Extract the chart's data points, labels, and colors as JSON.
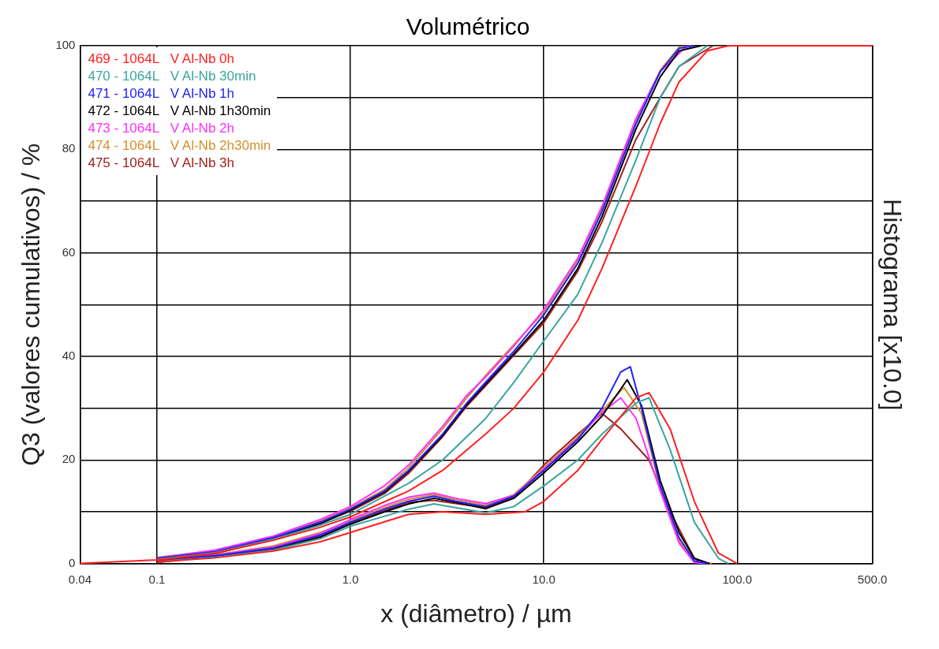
{
  "chart_data": {
    "type": "line",
    "title": "Volumétrico",
    "xlabel": "x (diâmetro) / µm",
    "ylabel": "Q3 (valores cumulativos) / %",
    "y2label": "Histograma [x10.0]",
    "log": "x",
    "grid": true,
    "legend": "top left",
    "xlim": [
      0.04,
      500
    ],
    "xticks": [
      {
        "value": 0.04,
        "label": "0.04"
      },
      {
        "value": 0.1,
        "label": "0.1"
      },
      {
        "value": 1,
        "label": "1.0"
      },
      {
        "value": 10,
        "label": "10.0"
      },
      {
        "value": 100,
        "label": "100.0"
      },
      {
        "value": 500,
        "label": "500.0"
      }
    ],
    "ylim": [
      0,
      100
    ],
    "yticks": [
      0,
      {
        "value": 10,
        "label": null
      },
      20,
      {
        "value": 30,
        "label": null
      },
      40,
      {
        "value": 50,
        "label": null
      },
      60,
      {
        "value": 70,
        "label": null
      },
      80,
      {
        "value": 90,
        "label": null
      },
      100
    ],
    "series": [
      {
        "name": "469 - 1064L   V Al-Nb 0h",
        "color": "#ff2020",
        "x": [
          0.04,
          0.1,
          0.2,
          0.4,
          0.7,
          1,
          2,
          3,
          5,
          7,
          10,
          15,
          20,
          30,
          40,
          50,
          70,
          90,
          500
        ],
        "values": [
          0,
          0.7,
          2,
          4.5,
          7,
          9,
          14,
          18,
          25,
          30,
          37,
          47,
          57,
          73,
          85,
          93,
          99,
          100,
          100
        ]
      },
      {
        "name": "470 - 1064L   V Al-Nb 30min",
        "color": "#3aa5a0",
        "x": [
          0.1,
          0.2,
          0.4,
          0.7,
          1,
          2,
          3,
          5,
          7,
          10,
          15,
          20,
          30,
          40,
          50,
          70
        ],
        "values": [
          0.8,
          2.1,
          4.7,
          7.4,
          9.5,
          15.5,
          20,
          28,
          35,
          43,
          52,
          62,
          78,
          90,
          96,
          100
        ]
      },
      {
        "name": "471 - 1064L   V Al-Nb 1h",
        "color": "#2020ff",
        "x": [
          0.1,
          0.2,
          0.4,
          0.7,
          1,
          1.5,
          2,
          3,
          4,
          5,
          7,
          10,
          15,
          20,
          30,
          40,
          50,
          60
        ],
        "values": [
          1,
          2.3,
          5,
          8,
          10.5,
          14,
          18,
          25,
          31,
          35,
          41,
          48,
          58,
          68,
          85,
          95,
          99.5,
          100
        ]
      },
      {
        "name": "472 - 1064L   V Al-Nb 1h30min",
        "color": "#000000",
        "x": [
          0.1,
          0.2,
          0.4,
          0.7,
          1,
          1.5,
          2,
          3,
          4,
          5,
          7,
          10,
          15,
          20,
          30,
          40,
          50,
          65
        ],
        "values": [
          0.9,
          2.2,
          4.8,
          7.7,
          10.3,
          13.8,
          17.8,
          24.7,
          30.7,
          34.6,
          40.5,
          47,
          57,
          67,
          84,
          94,
          99,
          100
        ]
      },
      {
        "name": "473 - 1064L   V Al-Nb 2h",
        "color": "#ff30ff",
        "x": [
          0.1,
          0.2,
          0.4,
          0.7,
          1,
          1.5,
          2,
          3,
          4,
          5,
          7,
          10,
          15,
          20,
          30,
          40,
          55
        ],
        "values": [
          1.1,
          2.6,
          5.3,
          8.5,
          11,
          15,
          19,
          26.5,
          32.5,
          36,
          42,
          49,
          59,
          69,
          86,
          95,
          100
        ]
      },
      {
        "name": "474 - 1064L   V Al-Nb 2h30min",
        "color": "#d4902a",
        "x": [
          0.1,
          0.2,
          0.4,
          0.7,
          1,
          1.5,
          2,
          3,
          4,
          5,
          7,
          10,
          15,
          20,
          30,
          40,
          50,
          58
        ],
        "values": [
          1.2,
          2.4,
          5.1,
          8.2,
          10.7,
          14.3,
          18.5,
          26,
          32,
          36.3,
          42.3,
          48.5,
          58.5,
          68.5,
          85.5,
          95.3,
          99.7,
          100
        ]
      },
      {
        "name": "475 - 1064L   V Al-Nb 3h",
        "color": "#a02020",
        "x": [
          0.1,
          0.2,
          0.4,
          0.7,
          1,
          1.5,
          2,
          3,
          4,
          5,
          7,
          10,
          15,
          20,
          30,
          40,
          50,
          75
        ],
        "values": [
          0.6,
          1.9,
          4.6,
          7.8,
          10.1,
          13.5,
          17.4,
          24.5,
          30.4,
          34.3,
          40.2,
          46.5,
          56.5,
          66,
          82,
          90,
          96,
          100
        ]
      },
      {
        "color": "#ff2020",
        "x": [
          0.1,
          0.2,
          0.4,
          0.7,
          1,
          2,
          3,
          5,
          8,
          10,
          15,
          20,
          30,
          35,
          45,
          60,
          80,
          100
        ],
        "values": [
          0.3,
          1.1,
          2.4,
          4.2,
          6,
          9.5,
          10,
          9.5,
          10,
          12,
          18,
          24,
          32,
          33,
          26,
          12,
          2,
          0
        ]
      },
      {
        "color": "#3aa5a0",
        "x": [
          0.1,
          0.2,
          0.4,
          0.7,
          1,
          2,
          2.7,
          5,
          7,
          10,
          15,
          20,
          30,
          35,
          45,
          60,
          80,
          90
        ],
        "values": [
          0.4,
          1.2,
          2.6,
          4.8,
          7.2,
          10.5,
          11.5,
          9.8,
          11,
          15,
          20,
          25,
          31,
          32,
          22,
          8,
          1,
          0
        ]
      },
      {
        "color": "#2020ff",
        "x": [
          0.1,
          0.2,
          0.4,
          0.7,
          1,
          1.5,
          2,
          2.7,
          3.5,
          5,
          7,
          10,
          15,
          20,
          25,
          28,
          32,
          40,
          50,
          60,
          70
        ],
        "values": [
          0.6,
          1.5,
          3,
          5.5,
          8,
          10.5,
          12,
          13,
          12,
          11,
          13,
          18,
          24,
          30,
          37,
          38,
          30,
          15,
          5,
          0.5,
          0
        ]
      },
      {
        "color": "#000000",
        "x": [
          0.1,
          0.2,
          0.4,
          0.7,
          1,
          1.5,
          2,
          2.7,
          3.5,
          5,
          7,
          10,
          15,
          20,
          27,
          32,
          40,
          50,
          60,
          72
        ],
        "values": [
          0.5,
          1.3,
          2.7,
          5.1,
          7.6,
          10,
          11.5,
          12.6,
          11.8,
          10.6,
          12.6,
          17.5,
          23.5,
          28.5,
          35.5,
          30.5,
          16,
          6,
          1,
          0
        ]
      },
      {
        "color": "#ff30ff",
        "x": [
          0.1,
          0.2,
          0.4,
          0.7,
          1,
          1.5,
          2,
          2.7,
          3.5,
          5,
          7,
          10,
          15,
          20,
          25,
          30,
          40,
          50,
          60,
          68
        ],
        "values": [
          0.7,
          1.6,
          3.2,
          5.8,
          8.5,
          11.2,
          12.8,
          13.6,
          12.6,
          11.6,
          13.1,
          18.2,
          24.2,
          29.2,
          32,
          28,
          14,
          4,
          0.2,
          0
        ]
      },
      {
        "color": "#d4902a",
        "x": [
          0.1,
          0.2,
          0.4,
          0.7,
          1,
          1.5,
          2,
          2.7,
          3.5,
          5,
          7,
          10,
          15,
          20,
          26,
          32,
          40,
          50,
          60,
          74
        ],
        "values": [
          0.8,
          1.7,
          3.4,
          6,
          8.3,
          10.8,
          12.4,
          13.3,
          12.3,
          11.3,
          13.3,
          18.5,
          24.5,
          29.5,
          34,
          29,
          14.5,
          4.5,
          0.3,
          0
        ]
      },
      {
        "color": "#a02020",
        "x": [
          0.1,
          0.2,
          0.4,
          0.7,
          1,
          1.5,
          2,
          2.7,
          3.5,
          5,
          7,
          10,
          15,
          20,
          25,
          35,
          45,
          60,
          66
        ],
        "values": [
          0.2,
          1.4,
          2.8,
          5.3,
          7.8,
          10.2,
          11.8,
          12.2,
          11.6,
          10.8,
          12.8,
          19,
          25,
          29,
          26,
          20,
          10,
          1,
          0
        ]
      }
    ]
  }
}
